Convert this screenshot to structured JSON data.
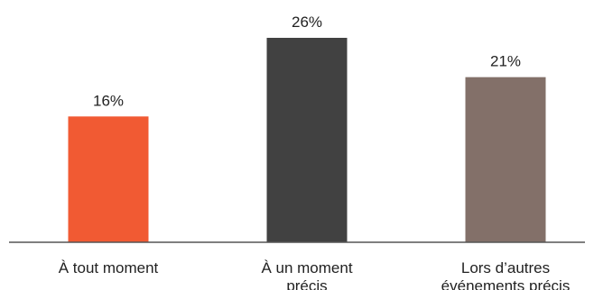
{
  "chart_data": {
    "type": "bar",
    "categories": [
      [
        "À tout moment"
      ],
      [
        "À un moment",
        "précis"
      ],
      [
        "Lors d’autres",
        "événements précis"
      ]
    ],
    "values": [
      16,
      26,
      21
    ],
    "value_labels": [
      "16%",
      "26%",
      "21%"
    ],
    "colors": [
      "#f15a33",
      "#414141",
      "#837069"
    ],
    "ylim": [
      0,
      30
    ],
    "grid": false,
    "legend": "none"
  }
}
